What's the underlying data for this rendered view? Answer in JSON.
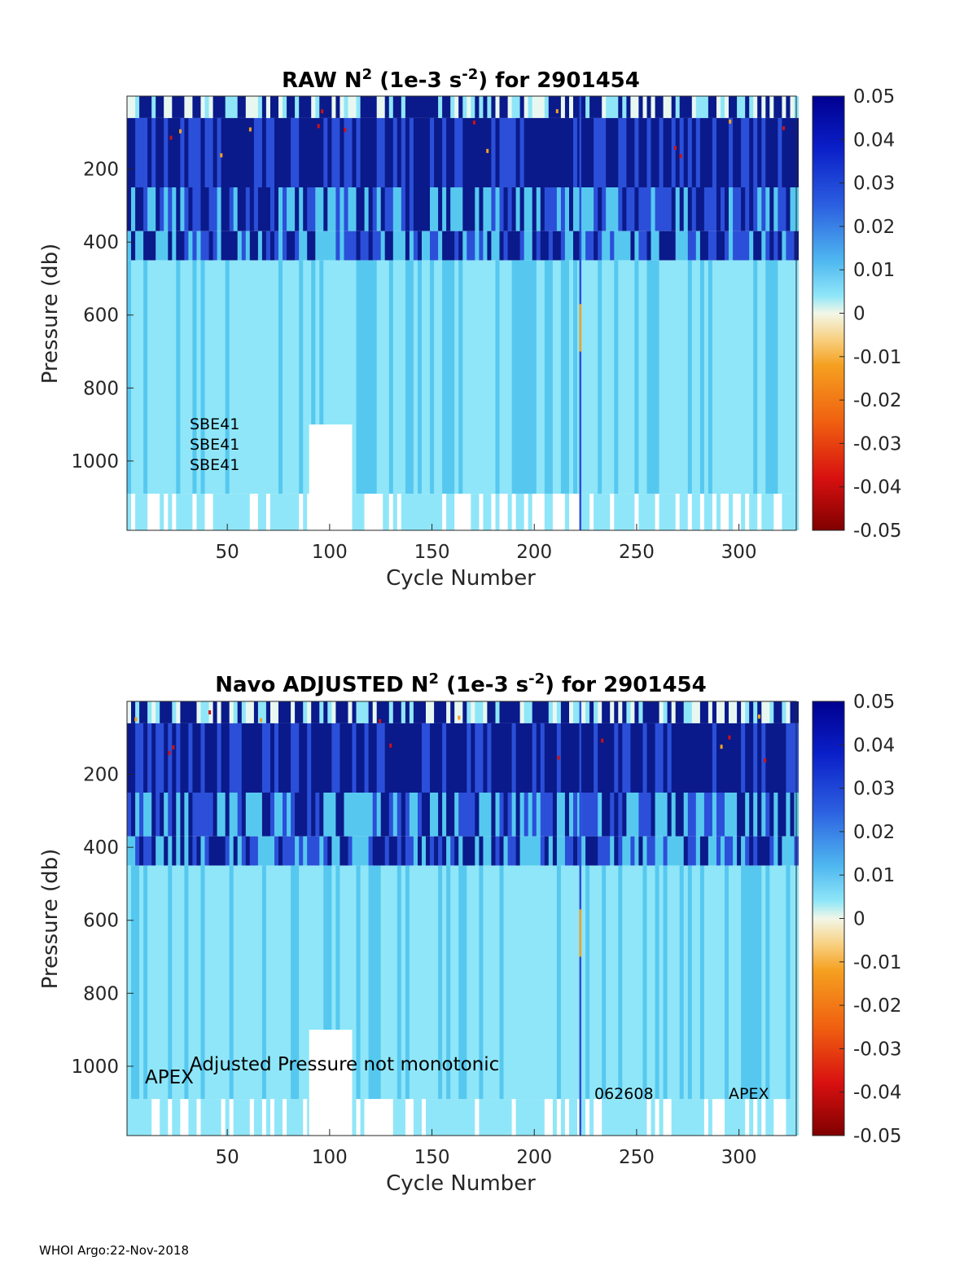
{
  "footer": "WHOI Argo:22-Nov-2018",
  "colors": {
    "deep_blue": "#0a1a8a",
    "mid_blue": "#2b4fd8",
    "light_blue": "#56c8f0",
    "cyan": "#8fe6f8",
    "pale": "#e8f8f0",
    "orange": "#f5a020",
    "red": "#d01010"
  },
  "chart_data": [
    {
      "type": "heatmap",
      "title": "RAW N",
      "title_sup": "2",
      "title_mid": " (1e-3 s",
      "title_sup2": "-2",
      "title_end": ") for 2901454",
      "xlabel": "Cycle Number",
      "ylabel": "Pressure (db)",
      "xlim": [
        1,
        328
      ],
      "ylim": [
        0,
        1190
      ],
      "xticks": [
        "50",
        "100",
        "150",
        "200",
        "250",
        "300"
      ],
      "yticks": [
        "200",
        "400",
        "600",
        "800",
        "1000"
      ],
      "colorbar": {
        "range": [
          -0.05,
          0.05
        ],
        "ticks": [
          "0.05",
          "0.04",
          "0.03",
          "0.02",
          "0.01",
          "0",
          "-0.01",
          "-0.02",
          "-0.03",
          "-0.04",
          "-0.05"
        ]
      },
      "annotations": [
        "SBE41",
        "SBE41",
        "SBE41"
      ]
    },
    {
      "type": "heatmap",
      "title": "Navo  ADJUSTED N",
      "title_sup": "2",
      "title_mid": " (1e-3 s",
      "title_sup2": "-2",
      "title_end": ") for 2901454",
      "xlabel": "Cycle Number",
      "ylabel": "Pressure (db)",
      "xlim": [
        1,
        328
      ],
      "ylim": [
        0,
        1190
      ],
      "xticks": [
        "50",
        "100",
        "150",
        "200",
        "250",
        "300"
      ],
      "yticks": [
        "200",
        "400",
        "600",
        "800",
        "1000"
      ],
      "colorbar": {
        "range": [
          -0.05,
          0.05
        ],
        "ticks": [
          "0.05",
          "0.04",
          "0.03",
          "0.02",
          "0.01",
          "0",
          "-0.01",
          "-0.02",
          "-0.03",
          "-0.04",
          "-0.05"
        ]
      },
      "annotations": [
        "APEX",
        "Adjusted Pressure not monotonic",
        "062608",
        "APEX"
      ]
    }
  ]
}
